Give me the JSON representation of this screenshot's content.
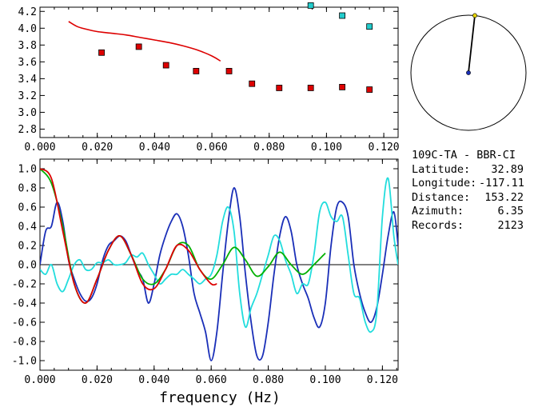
{
  "station": {
    "title": "109C-TA - BBR-CI",
    "fields": [
      {
        "label": "Latitude:",
        "value": "32.89"
      },
      {
        "label": "Longitude:",
        "value": "-117.11"
      },
      {
        "label": "Distance:",
        "value": "153.22"
      },
      {
        "label": "Azimuth:",
        "value": "6.35"
      },
      {
        "label": "Records:",
        "value": "2123"
      }
    ]
  },
  "chart_data": [
    {
      "type": "scatter",
      "panel": "top",
      "xlim": [
        0.0,
        0.125
      ],
      "ylim": [
        2.7,
        4.25
      ],
      "xticks": [
        "0.000",
        "0.020",
        "0.040",
        "0.060",
        "0.080",
        "0.100",
        "0.120"
      ],
      "yticks": [
        "2.8",
        "3.0",
        "3.2",
        "3.4",
        "3.6",
        "3.8",
        "4.0",
        "4.2"
      ],
      "series": [
        {
          "color": "#dd0000",
          "style": "line",
          "x": [
            0.01,
            0.013,
            0.016,
            0.02,
            0.025,
            0.03,
            0.035,
            0.04,
            0.045,
            0.05,
            0.055,
            0.06,
            0.063
          ],
          "y": [
            4.08,
            4.02,
            3.99,
            3.96,
            3.94,
            3.92,
            3.89,
            3.86,
            3.83,
            3.79,
            3.74,
            3.67,
            3.61
          ]
        },
        {
          "color": "#dd0000",
          "style": "points",
          "x": [
            0.0215,
            0.0345,
            0.044,
            0.0545,
            0.066,
            0.074,
            0.0835,
            0.0945,
            0.1055,
            0.115
          ],
          "y": [
            3.71,
            3.78,
            3.56,
            3.49,
            3.49,
            3.34,
            3.29,
            3.29,
            3.3,
            3.27
          ]
        },
        {
          "color": "#22cccc",
          "style": "points",
          "x": [
            0.0945,
            0.1055,
            0.115
          ],
          "y": [
            4.27,
            4.15,
            4.02
          ]
        }
      ]
    },
    {
      "type": "line",
      "panel": "bottom",
      "xlabel": "frequency (Hz)",
      "xlim": [
        0.0,
        0.1255
      ],
      "ylim": [
        -1.1,
        1.1
      ],
      "xticks": [
        "0.000",
        "0.020",
        "0.040",
        "0.060",
        "0.080",
        "0.100",
        "0.120"
      ],
      "yticks": [
        "1.0",
        "0.8",
        "0.6",
        "0.4",
        "0.2",
        "0.0",
        "-0.2",
        "-0.4",
        "-0.6",
        "-0.8",
        "-1.0"
      ],
      "series": [
        {
          "color": "#1a2fb8",
          "x": [
            0.0,
            0.002,
            0.004,
            0.006,
            0.008,
            0.01,
            0.012,
            0.014,
            0.016,
            0.018,
            0.02,
            0.022,
            0.024,
            0.026,
            0.028,
            0.03,
            0.032,
            0.034,
            0.036,
            0.038,
            0.04,
            0.042,
            0.044,
            0.046,
            0.048,
            0.05,
            0.052,
            0.054,
            0.056,
            0.058,
            0.06,
            0.062,
            0.064,
            0.066,
            0.068,
            0.07,
            0.072,
            0.074,
            0.076,
            0.078,
            0.08,
            0.082,
            0.084,
            0.086,
            0.088,
            0.09,
            0.092,
            0.094,
            0.096,
            0.098,
            0.1,
            0.102,
            0.104,
            0.106,
            0.108,
            0.11,
            0.112,
            0.114,
            0.116,
            0.118,
            0.12,
            0.122,
            0.124,
            0.1255
          ],
          "y": [
            0.0,
            0.35,
            0.4,
            0.65,
            0.45,
            0.05,
            -0.15,
            -0.3,
            -0.38,
            -0.35,
            -0.2,
            0.05,
            0.2,
            0.25,
            0.3,
            0.25,
            0.1,
            -0.05,
            -0.15,
            -0.4,
            -0.2,
            0.1,
            0.3,
            0.45,
            0.53,
            0.4,
            0.1,
            -0.3,
            -0.5,
            -0.7,
            -1.0,
            -0.7,
            -0.1,
            0.45,
            0.8,
            0.5,
            -0.1,
            -0.6,
            -0.95,
            -0.95,
            -0.6,
            -0.1,
            0.3,
            0.5,
            0.35,
            0.0,
            -0.2,
            -0.35,
            -0.55,
            -0.65,
            -0.4,
            0.2,
            0.6,
            0.65,
            0.5,
            0.0,
            -0.3,
            -0.5,
            -0.6,
            -0.45,
            -0.1,
            0.3,
            0.55,
            0.2
          ]
        },
        {
          "color": "#22dddd",
          "x": [
            0.0,
            0.002,
            0.004,
            0.006,
            0.008,
            0.01,
            0.012,
            0.014,
            0.016,
            0.018,
            0.02,
            0.022,
            0.024,
            0.026,
            0.028,
            0.03,
            0.032,
            0.034,
            0.036,
            0.038,
            0.04,
            0.042,
            0.044,
            0.046,
            0.048,
            0.05,
            0.052,
            0.054,
            0.056,
            0.058,
            0.06,
            0.062,
            0.064,
            0.066,
            0.068,
            0.07,
            0.072,
            0.074,
            0.076,
            0.078,
            0.08,
            0.082,
            0.084,
            0.086,
            0.088,
            0.09,
            0.092,
            0.094,
            0.096,
            0.098,
            0.1,
            0.102,
            0.104,
            0.106,
            0.108,
            0.11,
            0.112,
            0.114,
            0.116,
            0.118,
            0.12,
            0.122,
            0.124,
            0.1255
          ],
          "y": [
            -0.05,
            -0.1,
            0.0,
            -0.2,
            -0.28,
            -0.15,
            0.0,
            0.05,
            -0.05,
            -0.05,
            0.02,
            0.02,
            0.05,
            0.0,
            0.0,
            0.02,
            0.1,
            0.08,
            0.12,
            0.0,
            -0.1,
            -0.2,
            -0.15,
            -0.1,
            -0.1,
            -0.05,
            -0.1,
            -0.15,
            -0.2,
            -0.15,
            -0.1,
            0.1,
            0.45,
            0.6,
            0.35,
            -0.3,
            -0.65,
            -0.45,
            -0.3,
            -0.1,
            0.1,
            0.3,
            0.25,
            0.05,
            -0.1,
            -0.3,
            -0.2,
            -0.2,
            0.1,
            0.55,
            0.65,
            0.5,
            0.45,
            0.5,
            0.1,
            -0.3,
            -0.35,
            -0.6,
            -0.7,
            -0.5,
            0.5,
            0.9,
            0.3,
            0.0
          ]
        },
        {
          "color": "#00b000",
          "x": [
            0.0,
            0.004,
            0.008,
            0.012,
            0.016,
            0.02,
            0.024,
            0.028,
            0.032,
            0.036,
            0.04,
            0.044,
            0.048,
            0.052,
            0.056,
            0.06,
            0.064,
            0.068,
            0.072,
            0.076,
            0.08,
            0.084,
            0.088,
            0.092,
            0.096,
            0.1
          ],
          "y": [
            1.0,
            0.85,
            0.4,
            -0.2,
            -0.4,
            -0.15,
            0.15,
            0.3,
            0.1,
            -0.15,
            -0.2,
            -0.05,
            0.2,
            0.2,
            -0.05,
            -0.15,
            0.0,
            0.18,
            0.05,
            -0.12,
            -0.02,
            0.13,
            0.0,
            -0.1,
            0.0,
            0.12
          ]
        },
        {
          "color": "#dd0000",
          "x": [
            0.0,
            0.004,
            0.008,
            0.012,
            0.016,
            0.02,
            0.024,
            0.028,
            0.032,
            0.036,
            0.04,
            0.044,
            0.048,
            0.052,
            0.056,
            0.06,
            0.062
          ],
          "y": [
            1.0,
            0.9,
            0.35,
            -0.2,
            -0.4,
            -0.15,
            0.15,
            0.3,
            0.1,
            -0.2,
            -0.25,
            -0.05,
            0.2,
            0.15,
            -0.05,
            -0.2,
            -0.2
          ]
        }
      ]
    }
  ],
  "azimuth_dial": {
    "azimuth_deg": 6.35
  }
}
